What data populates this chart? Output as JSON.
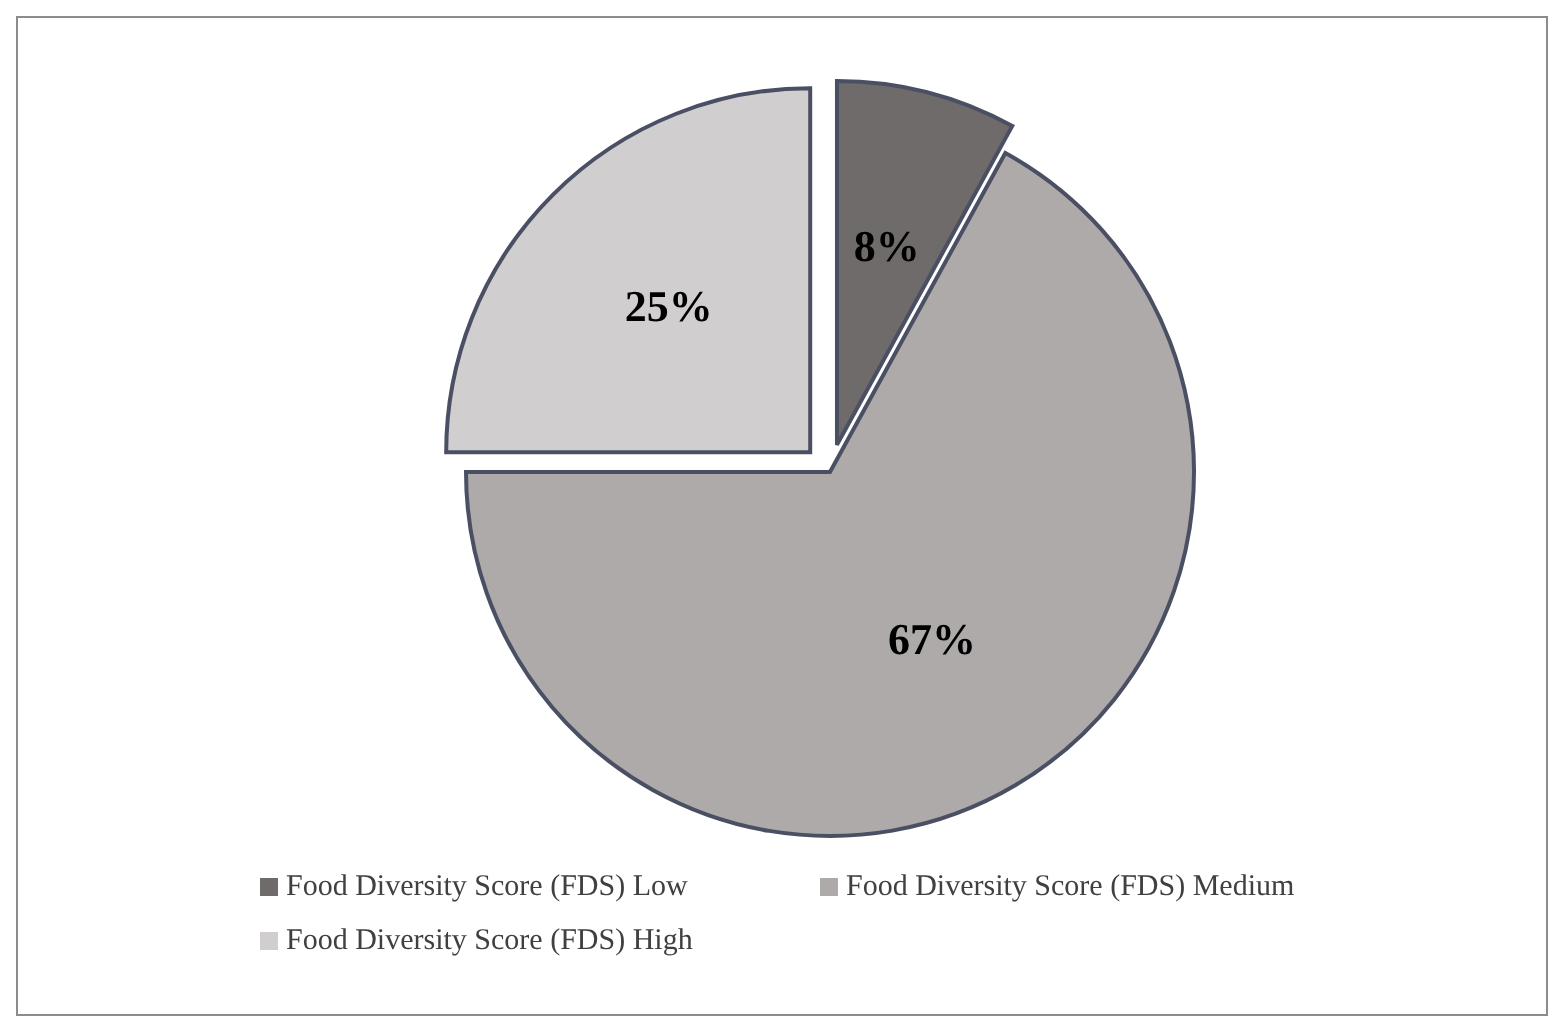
{
  "chart_data": {
    "type": "pie",
    "categories": [
      "Food Diversity Score (FDS) Low",
      "Food Diversity Score (FDS) Medium",
      "Food Diversity Score (FDS) High"
    ],
    "values": [
      8,
      67,
      25
    ],
    "colors": [
      "#6f6b6b",
      "#aeaaaa",
      "#d0cece"
    ],
    "value_labels": [
      "8%",
      "67%",
      "25%"
    ],
    "legend": "bottom"
  }
}
